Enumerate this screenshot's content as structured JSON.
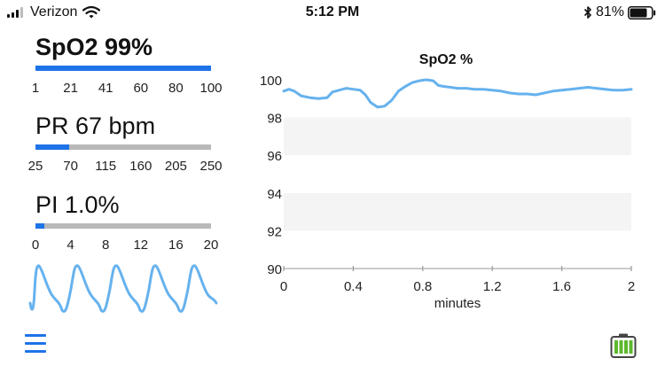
{
  "status_bar": {
    "carrier": "Verizon",
    "time": "5:12 PM",
    "battery_percent": "81%",
    "battery_level": 0.81,
    "icons": [
      "signal-bars-icon",
      "wifi-icon",
      "bluetooth-icon",
      "battery-icon"
    ]
  },
  "metrics": {
    "spo2": {
      "label": "SpO2 99%",
      "level": 1.0,
      "scale": [
        "1",
        "21",
        "41",
        "60",
        "80",
        "100"
      ]
    },
    "pr": {
      "label": "PR 67 bpm",
      "level": 0.19,
      "scale": [
        "25",
        "70",
        "115",
        "160",
        "205",
        "250"
      ]
    },
    "pi": {
      "label": "PI 1.0%",
      "level": 0.05,
      "scale": [
        "0",
        "4",
        "8",
        "12",
        "16",
        "20"
      ]
    }
  },
  "colors": {
    "accent": "#1e73e8",
    "trace": "#66b2ee",
    "bar_track": "#b9b9b9",
    "battery_green": "#5cb82e"
  },
  "bottom_bar": {
    "menu_icon": "hamburger-menu-icon",
    "device_battery_icon": "battery-full-icon"
  },
  "chart_data": {
    "type": "line",
    "title": "SpO2 %",
    "xlabel": "minutes",
    "ylabel": "",
    "xlim": [
      0,
      2
    ],
    "ylim": [
      90,
      100
    ],
    "x_ticks": [
      "0",
      "0.4",
      "0.8",
      "1.2",
      "1.6",
      "2"
    ],
    "y_ticks": [
      "100",
      "98",
      "96",
      "94",
      "92",
      "90"
    ],
    "grid": "alternating horizontal bands",
    "series": [
      {
        "x": [
          0,
          0.03,
          0.06,
          0.1,
          0.15,
          0.2,
          0.25,
          0.28,
          0.32,
          0.36,
          0.4,
          0.44,
          0.47,
          0.5,
          0.54,
          0.58,
          0.62,
          0.66,
          0.7,
          0.74,
          0.78,
          0.82,
          0.86,
          0.89,
          0.92,
          0.96,
          1.0,
          1.05,
          1.1,
          1.15,
          1.2,
          1.25,
          1.3,
          1.35,
          1.4,
          1.45,
          1.5,
          1.55,
          1.6,
          1.65,
          1.7,
          1.75,
          1.8,
          1.85,
          1.9,
          1.95,
          2.0
        ],
        "y": [
          99.4,
          99.5,
          99.4,
          99.15,
          99.05,
          99.0,
          99.05,
          99.35,
          99.45,
          99.55,
          99.5,
          99.45,
          99.2,
          98.8,
          98.55,
          98.6,
          98.9,
          99.4,
          99.65,
          99.85,
          99.95,
          100.0,
          99.95,
          99.7,
          99.65,
          99.6,
          99.55,
          99.55,
          99.5,
          99.5,
          99.45,
          99.4,
          99.3,
          99.25,
          99.25,
          99.2,
          99.3,
          99.4,
          99.45,
          99.5,
          99.55,
          99.6,
          99.55,
          99.5,
          99.45,
          99.45,
          99.5
        ]
      }
    ]
  }
}
